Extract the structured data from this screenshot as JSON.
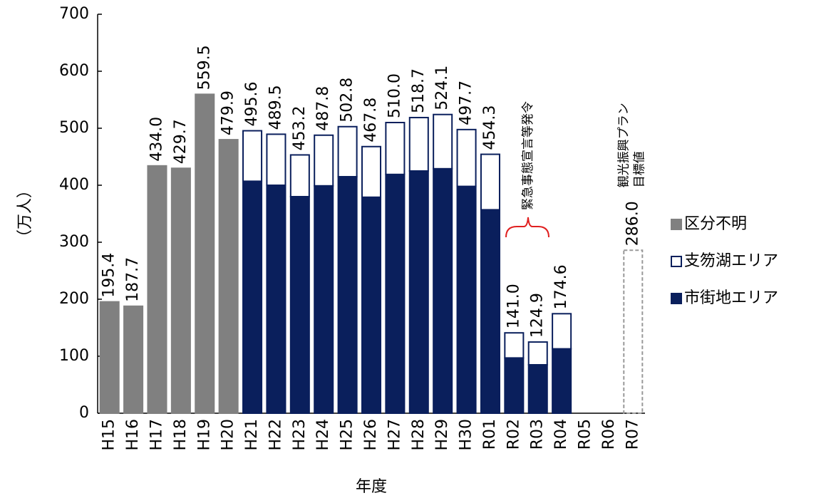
{
  "chart_data": {
    "type": "bar",
    "stacked": true,
    "y_label": "（万人）",
    "x_label": "年度",
    "categories": [
      "H15",
      "H16",
      "H17",
      "H18",
      "H19",
      "H20",
      "H21",
      "H22",
      "H23",
      "H24",
      "H25",
      "H26",
      "H27",
      "H28",
      "H29",
      "H30",
      "R01",
      "R02",
      "R03",
      "R04",
      "R05",
      "R06",
      "R07"
    ],
    "series": [
      {
        "name": "区分不明",
        "color": "#808080",
        "edgecolor": "#808080",
        "values": [
          195.4,
          187.7,
          434.0,
          429.7,
          559.5,
          479.9,
          null,
          null,
          null,
          null,
          null,
          null,
          null,
          null,
          null,
          null,
          null,
          null,
          null,
          null,
          null,
          null,
          null
        ]
      },
      {
        "name": "支笏湖エリア",
        "color": "#ffffff",
        "edgecolor": "#0a1f5c",
        "values": [
          null,
          null,
          null,
          null,
          null,
          null,
          88.6,
          89.5,
          73.2,
          88.8,
          87.8,
          88.8,
          91.0,
          93.7,
          95.1,
          99.7,
          97.3,
          44.0,
          39.9,
          61.6,
          null,
          null,
          null
        ]
      },
      {
        "name": "市街地エリア",
        "color": "#0a1f5c",
        "edgecolor": "#0a1f5c",
        "values": [
          null,
          null,
          null,
          null,
          null,
          null,
          407,
          400,
          380,
          399,
          415,
          379,
          419,
          425,
          429,
          398,
          357,
          97,
          85,
          113,
          null,
          null,
          null
        ]
      }
    ],
    "totals": [
      195.4,
      187.7,
      434.0,
      429.7,
      559.5,
      479.9,
      495.6,
      489.5,
      453.2,
      487.8,
      502.8,
      467.8,
      510.0,
      518.7,
      524.1,
      497.7,
      454.3,
      141.0,
      124.9,
      174.6,
      null,
      null,
      null
    ],
    "total_labels": [
      "195.4",
      "187.7",
      "434.0",
      "429.7",
      "559.5",
      "479.9",
      "495.6",
      "489.5",
      "453.2",
      "487.8",
      "502.8",
      "467.8",
      "510.0",
      "518.7",
      "524.1",
      "497.7",
      "454.3",
      "141.0",
      "124.9",
      "174.6",
      null,
      null,
      null
    ],
    "target": {
      "values": [
        null,
        null,
        null,
        null,
        null,
        null,
        null,
        null,
        null,
        null,
        null,
        null,
        null,
        null,
        null,
        null,
        null,
        null,
        null,
        null,
        null,
        null,
        286.0
      ],
      "value_labels": [
        null,
        null,
        null,
        null,
        null,
        null,
        null,
        null,
        null,
        null,
        null,
        null,
        null,
        null,
        null,
        null,
        null,
        null,
        null,
        null,
        null,
        null,
        "286.0"
      ],
      "label": [
        "観光振興プラン",
        "目標値"
      ],
      "color": "#999999",
      "label_color": "#1f3a7a"
    },
    "annotation": {
      "text": "緊急事態宣言等発令",
      "color": "#e02020"
    },
    "ylim": [
      0,
      700
    ],
    "yticks": [
      0,
      100,
      200,
      300,
      400,
      500,
      600,
      700
    ],
    "legend": "right"
  }
}
